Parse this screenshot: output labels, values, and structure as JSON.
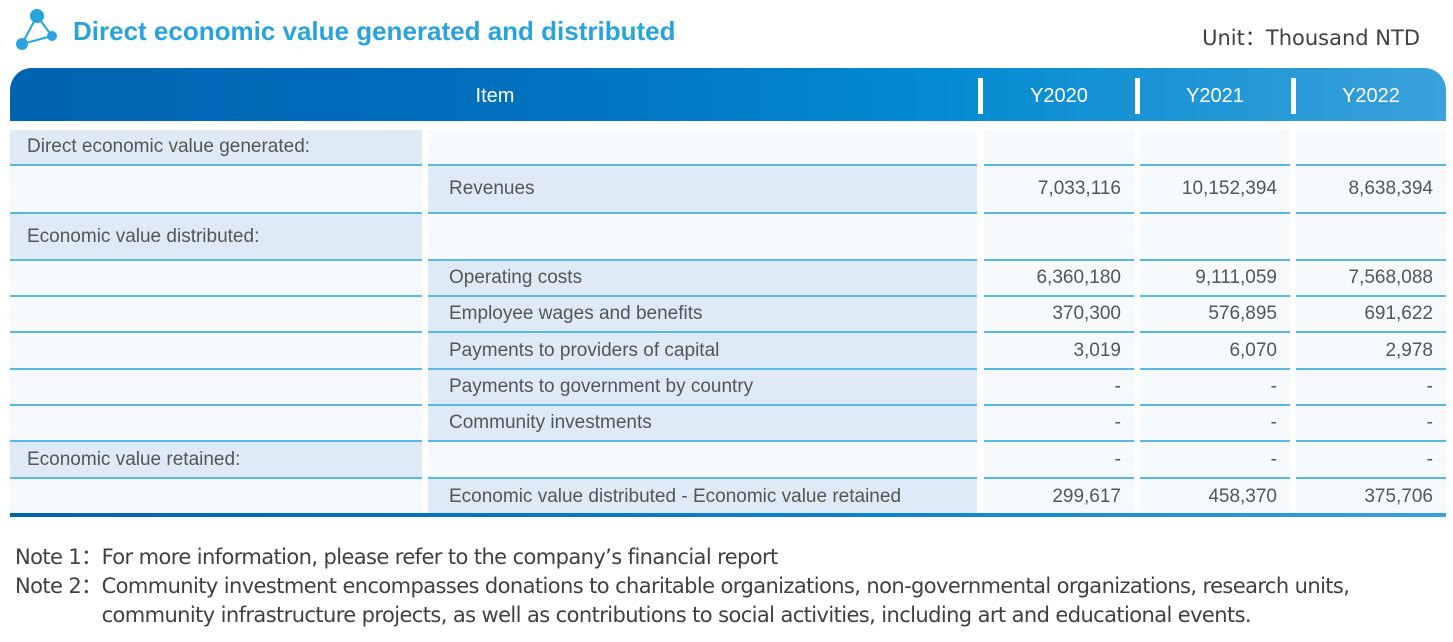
{
  "title": "Direct economic value generated and distributed",
  "unit": "Unit：Thousand NTD",
  "header": {
    "item": "Item",
    "years": [
      "Y2020",
      "Y2021",
      "Y2022"
    ]
  },
  "rows": [
    {
      "section": "Direct economic value generated:",
      "item": "",
      "values": [
        "",
        "",
        ""
      ]
    },
    {
      "section": "",
      "item": "Revenues",
      "values": [
        "7,033,116",
        "10,152,394",
        "8,638,394"
      ]
    },
    {
      "section": "Economic value distributed:",
      "item": "",
      "values": [
        "",
        "",
        ""
      ]
    },
    {
      "section": "",
      "item": "Operating costs",
      "values": [
        "6,360,180",
        "9,111,059",
        "7,568,088"
      ]
    },
    {
      "section": "",
      "item": "Employee wages and benefits",
      "values": [
        "370,300",
        "576,895",
        "691,622"
      ]
    },
    {
      "section": "",
      "item": "Payments to providers of capital",
      "values": [
        "3,019",
        "6,070",
        "2,978"
      ]
    },
    {
      "section": "",
      "item": "Payments to government by country",
      "values": [
        "-",
        "-",
        "-"
      ]
    },
    {
      "section": "",
      "item": "Community investments",
      "values": [
        "-",
        "-",
        "-"
      ]
    },
    {
      "section": "Economic value retained:",
      "item": "",
      "values": [
        "-",
        "-",
        "-"
      ]
    },
    {
      "section": "",
      "item": "Economic value distributed - Economic value retained",
      "values": [
        "299,617",
        "458,370",
        "375,706"
      ]
    }
  ],
  "notes": [
    {
      "label": "Note 1：",
      "text": "For more information, please refer to the company’s financial report"
    },
    {
      "label": "Note 2：",
      "text": "Community investment encompasses donations to charitable organizations, non-governmental organizations, research units, community infrastructure projects, as well as contributions to social activities, including art and educational events."
    }
  ],
  "colors": {
    "title": "#29a3de",
    "header": "#0070bd",
    "row_highlight": "#deebf7",
    "divider": "#5ab8e6"
  }
}
